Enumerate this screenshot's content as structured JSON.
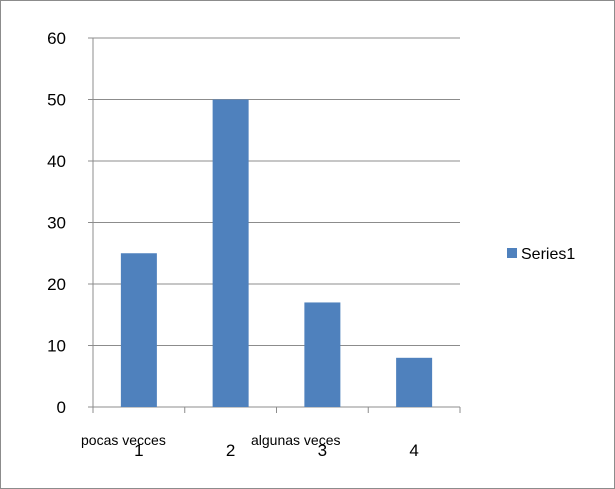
{
  "chart_data": {
    "type": "bar",
    "categories": [
      "1",
      "2",
      "3",
      "4"
    ],
    "series": [
      {
        "name": "Series1",
        "values": [
          25,
          50,
          17,
          8
        ],
        "color": "#4f81bd"
      }
    ],
    "ylim": [
      0,
      60
    ],
    "yticks": [
      0,
      10,
      20,
      30,
      40,
      50,
      60
    ],
    "grid": true,
    "legend": "right",
    "annotations": [
      "pocas vecces",
      "algunas veces"
    ]
  }
}
